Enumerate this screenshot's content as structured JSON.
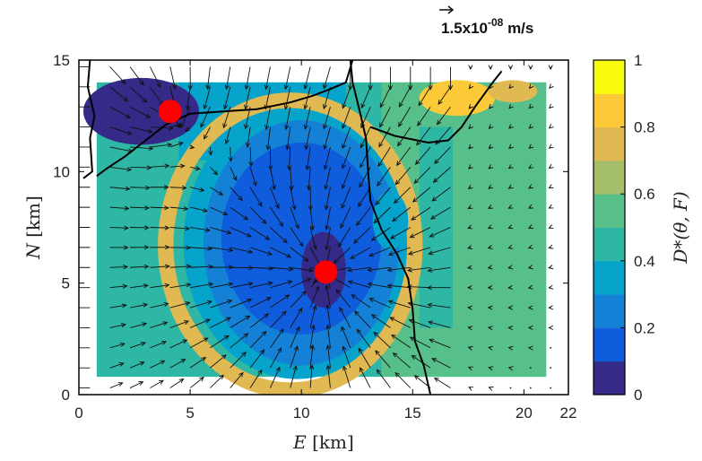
{
  "chart_data": {
    "type": "heatmap",
    "xlabel_var": "E",
    "xlabel_unit": "[km]",
    "ylabel_var": "N",
    "ylabel_unit": "[km]",
    "xlim": [
      0,
      22
    ],
    "ylim": [
      0,
      15
    ],
    "xticks": [
      0,
      5,
      10,
      15,
      20,
      22
    ],
    "yticks": [
      0,
      5,
      10,
      15
    ],
    "colorbar": {
      "label": "D*(θ, F)",
      "range": [
        0,
        1
      ],
      "ticks": [
        0,
        0.2,
        0.4,
        0.6,
        0.8,
        1
      ],
      "levels": 10,
      "colors": [
        "#352a87",
        "#0f5cdd",
        "#1481d6",
        "#06a4ca",
        "#2eb7a4",
        "#57bf8a",
        "#a5be6b",
        "#e1b952",
        "#fcc938",
        "#f9fb0e"
      ]
    },
    "scale_arrow": {
      "label": "1.5x10",
      "exponent": "-08",
      "unit": " m/s"
    },
    "field_extent": {
      "x": [
        0.8,
        21
      ],
      "y": [
        0.8,
        14
      ]
    },
    "wells": [
      {
        "x": 4.1,
        "y": 12.7,
        "color": "#ff0000"
      },
      {
        "x": 11.1,
        "y": 5.5,
        "color": "#ff0000"
      }
    ],
    "regions": [
      {
        "value": 0.05,
        "type": "ellipse",
        "cx": 2.8,
        "cy": 12.7,
        "rx": 2.6,
        "ry": 1.5
      },
      {
        "value": 0.05,
        "type": "ellipse",
        "cx": 11.0,
        "cy": 5.6,
        "rx": 1.0,
        "ry": 1.7
      },
      {
        "value": 0.15,
        "type": "ellipse",
        "cx": 10.0,
        "cy": 7.0,
        "rx": 3.6,
        "ry": 4.3
      },
      {
        "value": 0.25,
        "type": "ellipse",
        "cx": 10.0,
        "cy": 6.8,
        "rx": 4.4,
        "ry": 5.5
      },
      {
        "value": 0.35,
        "type": "ellipse",
        "cx": 9.8,
        "cy": 6.8,
        "rx": 5.1,
        "ry": 6.1
      },
      {
        "value": 0.75,
        "type": "ring",
        "cx": 9.5,
        "cy": 6.7,
        "r": 5.6,
        "ry": 6.5,
        "w": 0.7
      },
      {
        "value": 0.35,
        "type": "band",
        "y0": 10.5,
        "y1": 14,
        "x0": 4.5,
        "x1": 12
      },
      {
        "value": 0.55,
        "type": "band",
        "y0": 0.8,
        "y1": 14,
        "x0": 13.6,
        "x1": 21
      },
      {
        "value": 0.45,
        "type": "band",
        "y0": 3,
        "y1": 12,
        "x0": 15.3,
        "x1": 16.8
      },
      {
        "value": 0.35,
        "type": "ellipse",
        "cx": 14.0,
        "cy": 7.8,
        "rx": 0.8,
        "ry": 1.3
      },
      {
        "value": 0.85,
        "type": "ellipse",
        "cx": 17.0,
        "cy": 13.3,
        "rx": 1.7,
        "ry": 0.8
      },
      {
        "value": 0.75,
        "type": "ellipse",
        "cx": 19.5,
        "cy": 13.6,
        "rx": 1.1,
        "ry": 0.5
      }
    ],
    "contours": [
      [
        [
          0.8,
          9.8
        ],
        [
          1.2,
          10.1
        ],
        [
          2.1,
          10.7
        ],
        [
          3.0,
          11.4
        ],
        [
          3.9,
          12.1
        ],
        [
          5.0,
          12.6
        ],
        [
          6.5,
          12.7
        ],
        [
          8.0,
          12.8
        ],
        [
          9.5,
          13.1
        ],
        [
          10.5,
          13.4
        ],
        [
          11.3,
          13.7
        ],
        [
          12.0,
          14.0
        ],
        [
          12.3,
          15.0
        ]
      ],
      [
        [
          12.2,
          15.0
        ],
        [
          12.3,
          14.0
        ],
        [
          12.6,
          12.8
        ],
        [
          12.9,
          11.5
        ],
        [
          13.0,
          10.0
        ],
        [
          13.1,
          8.7
        ],
        [
          13.6,
          7.4
        ],
        [
          14.3,
          6.3
        ],
        [
          14.8,
          5.2
        ],
        [
          15.0,
          3.8
        ],
        [
          15.1,
          2.4
        ],
        [
          15.5,
          1.3
        ],
        [
          15.8,
          0
        ]
      ],
      [
        [
          13.1,
          12.0
        ],
        [
          14.2,
          11.6
        ],
        [
          15.7,
          11.3
        ],
        [
          16.6,
          11.4
        ],
        [
          17.2,
          12.0
        ],
        [
          17.8,
          12.9
        ],
        [
          18.6,
          14.0
        ],
        [
          19.0,
          14.5
        ]
      ],
      [
        [
          0.2,
          9.7
        ],
        [
          0.6,
          10.0
        ],
        [
          0.5,
          11.5
        ],
        [
          0.7,
          12.5
        ],
        [
          0.4,
          13.8
        ],
        [
          0.5,
          15.0
        ]
      ]
    ]
  }
}
